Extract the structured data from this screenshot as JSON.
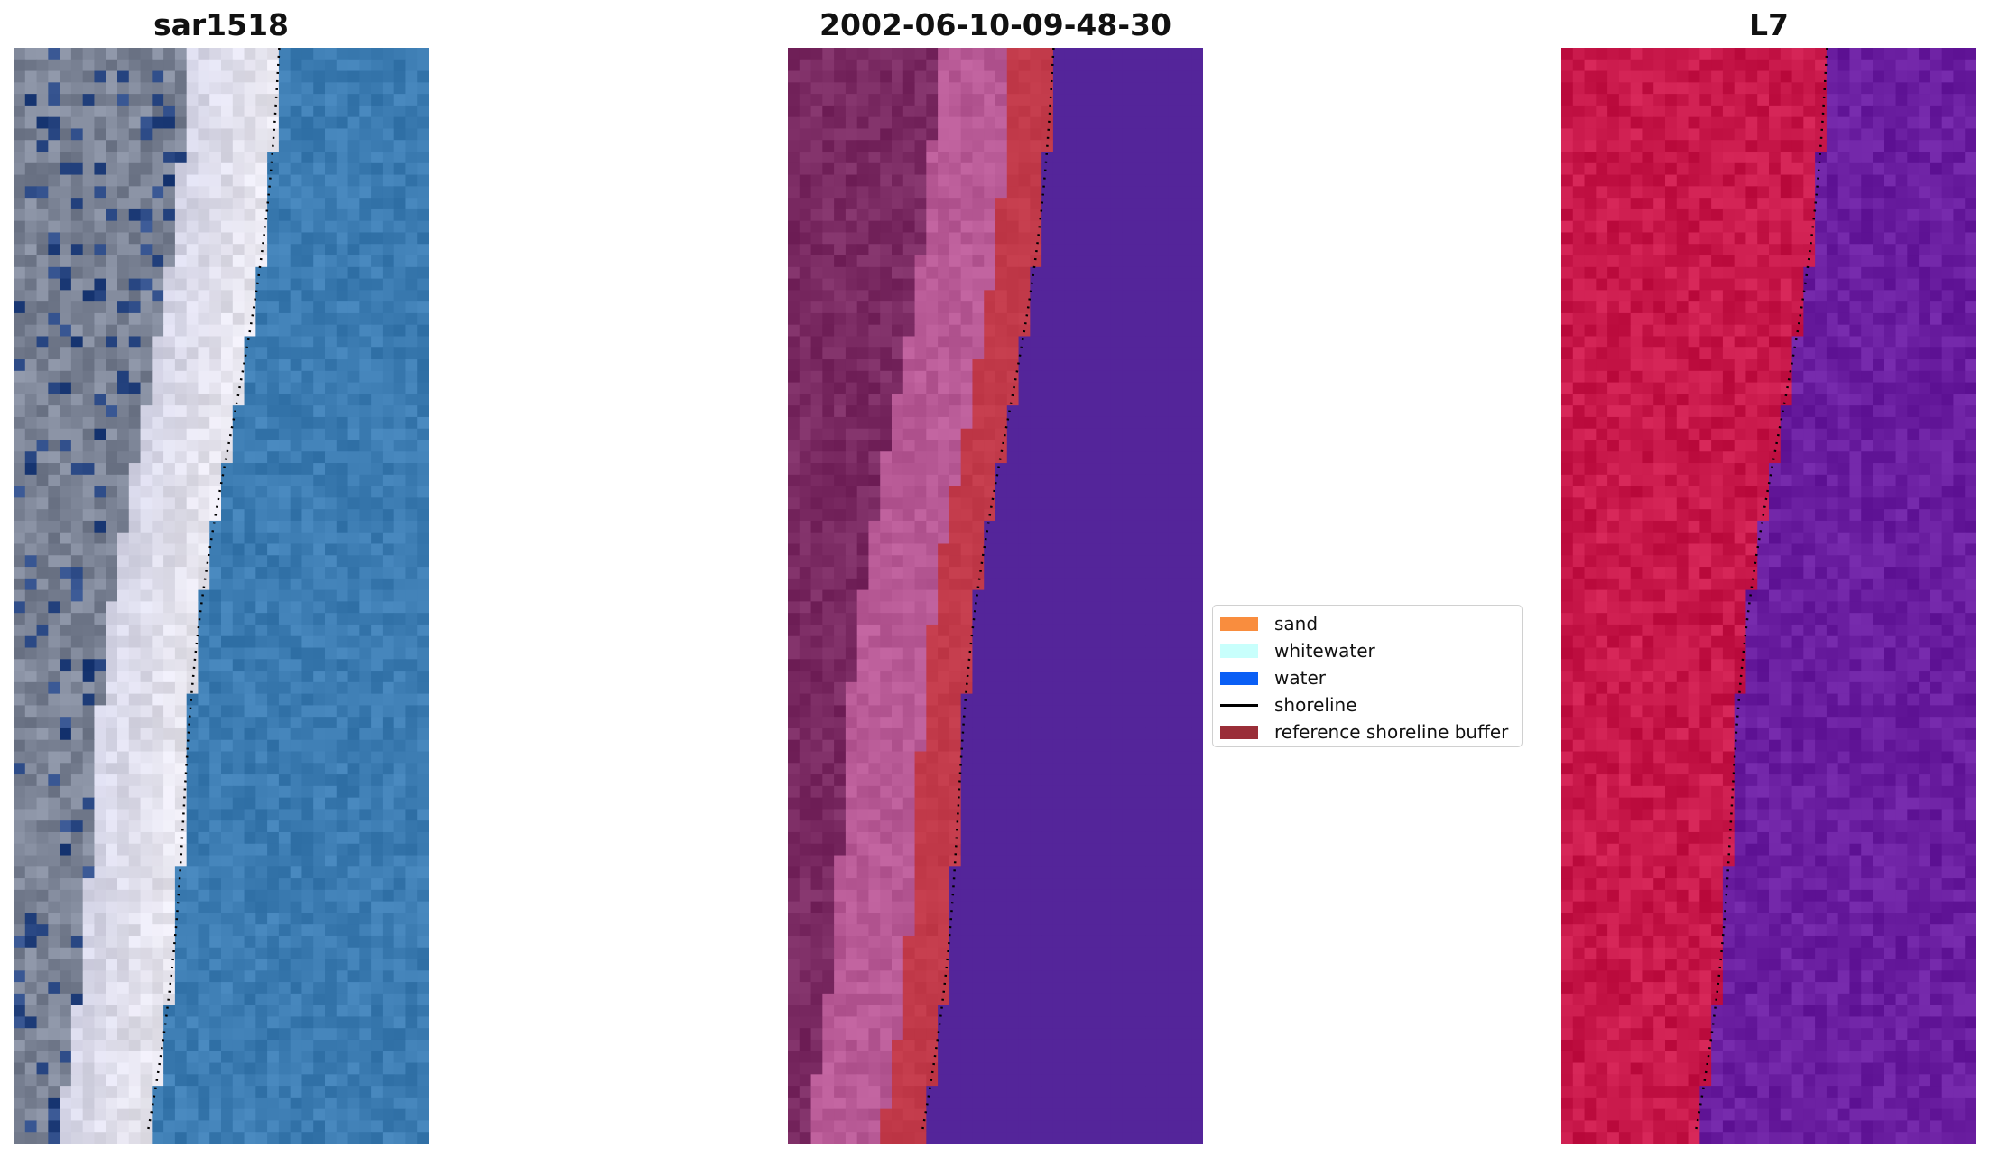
{
  "panels": {
    "left": {
      "title": "sar1518"
    },
    "middle": {
      "title": "2002-06-10-09-48-30"
    },
    "right": {
      "title": "L7"
    }
  },
  "legend": {
    "items": [
      {
        "label": "sand",
        "color": "#f98d3e",
        "kind": "patch"
      },
      {
        "label": "whitewater",
        "color": "#c8fffc",
        "kind": "patch"
      },
      {
        "label": "water",
        "color": "#0a5ff5",
        "kind": "patch"
      },
      {
        "label": "shoreline",
        "color": "#000000",
        "kind": "line"
      },
      {
        "label": "reference shoreline buffer",
        "color": "#9a2e38",
        "kind": "patch"
      }
    ]
  },
  "colors": {
    "rgb_sand": "#e8e6ee",
    "rgb_water": "#3c7cb2",
    "rgb_land": "#7c8496",
    "class_land": "#7a2a62",
    "class_beach": "#b85a96",
    "class_buffer": "#c23a4a",
    "class_water": "#54259a",
    "false_land": "#c8184a",
    "false_water": "#6a1ea0"
  }
}
